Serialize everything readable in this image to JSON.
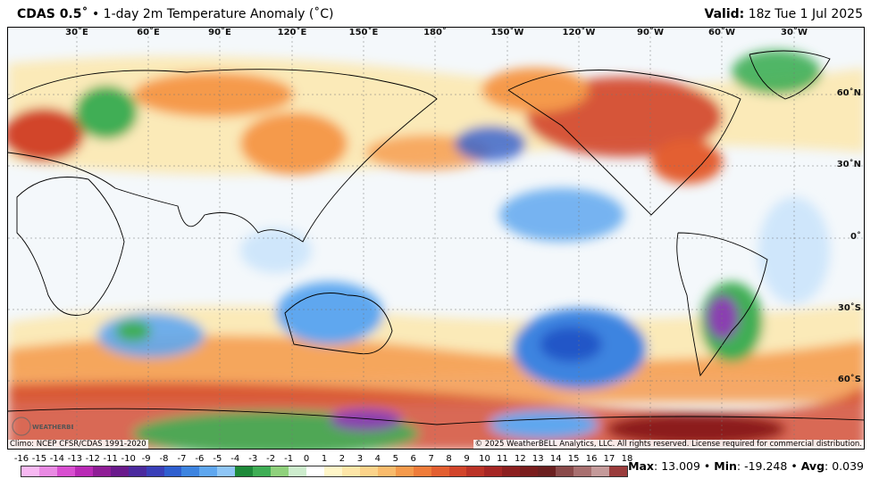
{
  "header": {
    "model": "CDAS 0.5˚",
    "separator": "•",
    "product": "1-day 2m Temperature Anomaly (˚C)",
    "valid_label": "Valid:",
    "valid_time": "18z Tue 1 Jul 2025"
  },
  "map": {
    "longitude_labels": [
      "30˚E",
      "60˚E",
      "90˚E",
      "120˚E",
      "150˚E",
      "180˚",
      "150˚W",
      "120˚W",
      "90˚W",
      "60˚W",
      "30˚W"
    ],
    "latitude_labels": [
      "60˚N",
      "30˚N",
      "0˚",
      "30˚S",
      "60˚S"
    ],
    "colors": {
      "ocean_neutral": "#f4f8fb",
      "warm_light": "#fde6a8",
      "warm": "#f59a4c",
      "warm_strong": "#d2452b",
      "hot": "#8c1f1f",
      "cool_light": "#cfe6fb",
      "cool": "#5c9ee8",
      "cool_strong": "#2456c7",
      "cold_green": "#3fae55",
      "cold_purple": "#8a3fb0"
    }
  },
  "footer": {
    "climo": "Climo: NCEP CFSR/CDAS 1991-2020",
    "copyright": "© 2025 WeatherBELL Analytics, LLC. All rights reserved. License required for commercial distribution.",
    "logo_text": "WEATHERBELL"
  },
  "colorbar": {
    "ticks": [
      "-16",
      "-15",
      "-14",
      "-13",
      "-12",
      "-11",
      "-10",
      "-9",
      "-8",
      "-7",
      "-6",
      "-5",
      "-4",
      "-3",
      "-2",
      "-1",
      "0",
      "1",
      "2",
      "3",
      "4",
      "5",
      "6",
      "7",
      "8",
      "9",
      "10",
      "11",
      "12",
      "13",
      "14",
      "15",
      "16",
      "17",
      "18"
    ],
    "colors": [
      "#f7b8f2",
      "#e98ae3",
      "#d84fd0",
      "#b92ab5",
      "#8f1d96",
      "#6a1a8c",
      "#4b2a9e",
      "#3a3fb8",
      "#2f5fcf",
      "#3d84e0",
      "#5fa7ef",
      "#8fc6f6",
      "#1e8a3a",
      "#3fae55",
      "#8fd17c",
      "#cdeccd",
      "#ffffff",
      "#fff6c8",
      "#fde6a8",
      "#fbd38a",
      "#f9bb6c",
      "#f59a4c",
      "#ef7c3a",
      "#e35f31",
      "#d2452b",
      "#bb3327",
      "#a52624",
      "#8c1f1f",
      "#7a1d1d",
      "#6b2020",
      "#8a4a4a",
      "#a87070",
      "#c49a9a",
      "#9a3c3c"
    ]
  },
  "stats": {
    "max_label": "Max",
    "max_value": "13.009",
    "min_label": "Min",
    "min_value": "-19.248",
    "avg_label": "Avg",
    "avg_value": "0.039",
    "bullet": "•"
  }
}
